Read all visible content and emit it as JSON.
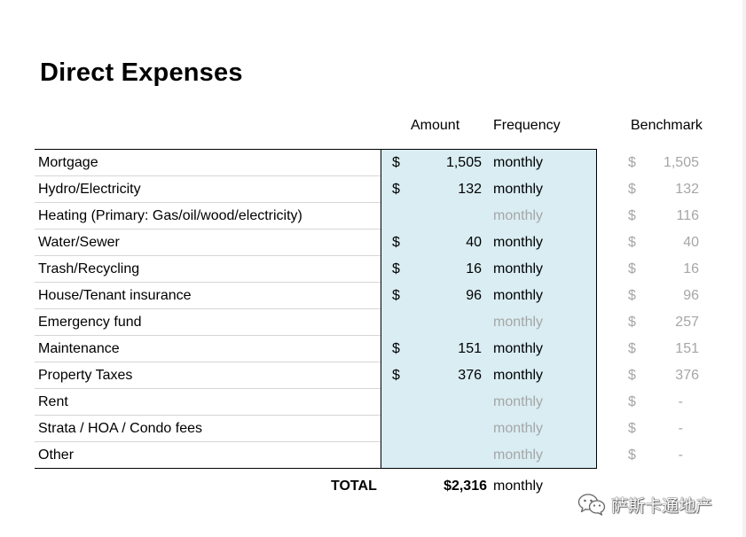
{
  "title": "Direct Expenses",
  "headers": {
    "amount": "Amount",
    "frequency": "Frequency",
    "benchmark": "Benchmark"
  },
  "rows": [
    {
      "label": "Mortgage",
      "currency": "$",
      "amount": "1,505",
      "frequency": "monthly",
      "bench_currency": "$",
      "benchmark": "1,505"
    },
    {
      "label": "Hydro/Electricity",
      "currency": "$",
      "amount": "132",
      "frequency": "monthly",
      "bench_currency": "$",
      "benchmark": "132"
    },
    {
      "label": "Heating (Primary: Gas/oil/wood/electricity)",
      "currency": "",
      "amount": "",
      "frequency": "monthly",
      "frequency_placeholder": true,
      "bench_currency": "$",
      "benchmark": "116"
    },
    {
      "label": "Water/Sewer",
      "currency": "$",
      "amount": "40",
      "frequency": "monthly",
      "bench_currency": "$",
      "benchmark": "40"
    },
    {
      "label": "Trash/Recycling",
      "currency": "$",
      "amount": "16",
      "frequency": "monthly",
      "bench_currency": "$",
      "benchmark": "16"
    },
    {
      "label": "House/Tenant insurance",
      "currency": "$",
      "amount": "96",
      "frequency": "monthly",
      "bench_currency": "$",
      "benchmark": "96"
    },
    {
      "label": "Emergency fund",
      "currency": "",
      "amount": "",
      "frequency": "monthly",
      "frequency_placeholder": true,
      "bench_currency": "$",
      "benchmark": "257"
    },
    {
      "label": "Maintenance",
      "currency": "$",
      "amount": "151",
      "frequency": "monthly",
      "bench_currency": "$",
      "benchmark": "151"
    },
    {
      "label": "Property Taxes",
      "currency": "$",
      "amount": "376",
      "frequency": "monthly",
      "bench_currency": "$",
      "benchmark": "376"
    },
    {
      "label": "Rent",
      "currency": "",
      "amount": "",
      "frequency": "monthly",
      "frequency_placeholder": true,
      "bench_currency": "$",
      "benchmark": "-"
    },
    {
      "label": "Strata / HOA / Condo fees",
      "currency": "",
      "amount": "",
      "frequency": "monthly",
      "frequency_placeholder": true,
      "bench_currency": "$",
      "benchmark": "-"
    },
    {
      "label": "Other",
      "currency": "",
      "amount": "",
      "frequency": "monthly",
      "frequency_placeholder": true,
      "bench_currency": "$",
      "benchmark": "-"
    }
  ],
  "total": {
    "label": "TOTAL",
    "amount": "$2,316",
    "frequency": "monthly"
  },
  "watermark": {
    "text": "萨斯卡通地产",
    "icon": "wechat-icon"
  },
  "colors": {
    "input_fill": "#d9edf3",
    "placeholder_text": "#a6a6a6",
    "benchmark_text": "#a6a6a6"
  }
}
